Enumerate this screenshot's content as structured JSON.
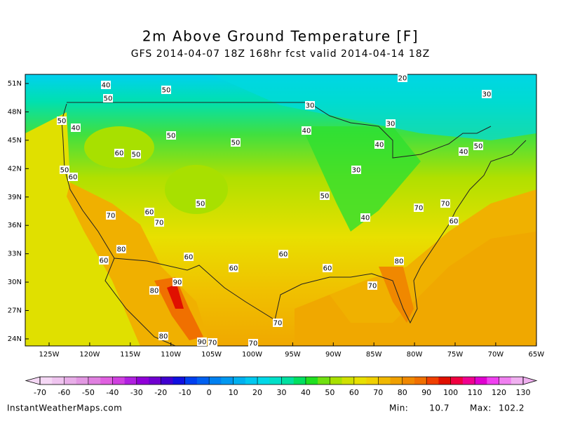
{
  "title": "2m Above Ground Temperature [F]",
  "subtitle": "GFS 2014-04-07 18Z 168hr fcst valid 2014-04-14 18Z",
  "map": {
    "lat_ticks": [
      {
        "value": 51,
        "label": "51N"
      },
      {
        "value": 48,
        "label": "48N"
      },
      {
        "value": 45,
        "label": "45N"
      },
      {
        "value": 42,
        "label": "42N"
      },
      {
        "value": 39,
        "label": "39N"
      },
      {
        "value": 36,
        "label": "36N"
      },
      {
        "value": 33,
        "label": "33N"
      },
      {
        "value": 30,
        "label": "30N"
      },
      {
        "value": 27,
        "label": "27N"
      },
      {
        "value": 24,
        "label": "24N"
      }
    ],
    "lon_ticks": [
      {
        "value": -125,
        "label": "125W"
      },
      {
        "value": -120,
        "label": "120W"
      },
      {
        "value": -115,
        "label": "115W"
      },
      {
        "value": -110,
        "label": "110W"
      },
      {
        "value": -105,
        "label": "105W"
      },
      {
        "value": -100,
        "label": "100W"
      },
      {
        "value": -95,
        "label": "95W"
      },
      {
        "value": -90,
        "label": "90W"
      },
      {
        "value": -85,
        "label": "85W"
      },
      {
        "value": -80,
        "label": "80W"
      },
      {
        "value": -75,
        "label": "75W"
      },
      {
        "value": -70,
        "label": "70W"
      },
      {
        "value": -65,
        "label": "65W"
      }
    ],
    "contour_labels": [
      40,
      50,
      50,
      20,
      30,
      30,
      50,
      40,
      30,
      40,
      50,
      50,
      40,
      60,
      50,
      40,
      50,
      50,
      30,
      60,
      50,
      50,
      70,
      70,
      60,
      70,
      40,
      70,
      60,
      80,
      60,
      60,
      60,
      80,
      60,
      60,
      90,
      70,
      80,
      70,
      80,
      90,
      70,
      70
    ]
  },
  "colorbar": {
    "lim": [
      -70,
      130
    ],
    "ticks": [
      -70,
      -60,
      -50,
      -40,
      -30,
      -20,
      -10,
      0,
      10,
      20,
      30,
      40,
      50,
      60,
      70,
      80,
      90,
      100,
      110,
      120,
      130
    ],
    "colors": [
      "#f5d8f5",
      "#efc4ef",
      "#e8aee8",
      "#e298e2",
      "#e080e0",
      "#e060e0",
      "#d040e0",
      "#b020e0",
      "#9000d8",
      "#7000d0",
      "#4000d0",
      "#1010e0",
      "#0040f0",
      "#0060f0",
      "#0080f0",
      "#0098f0",
      "#00b0f0",
      "#00c8f0",
      "#00d8e8",
      "#00e0c8",
      "#00e0a0",
      "#00e060",
      "#20e020",
      "#70e010",
      "#a8e000",
      "#d0e000",
      "#e8e000",
      "#f0d000",
      "#f0b800",
      "#f0a000",
      "#f08800",
      "#f07000",
      "#f04000",
      "#e01000",
      "#f00040",
      "#f00090",
      "#e000d0",
      "#f040f0",
      "#f080f0",
      "#f0b0f0"
    ]
  },
  "footer": {
    "site": "InstantWeatherMaps.com",
    "min_label": "Min:",
    "min": 10.7,
    "max_label": "Max:",
    "max": 102.2
  }
}
